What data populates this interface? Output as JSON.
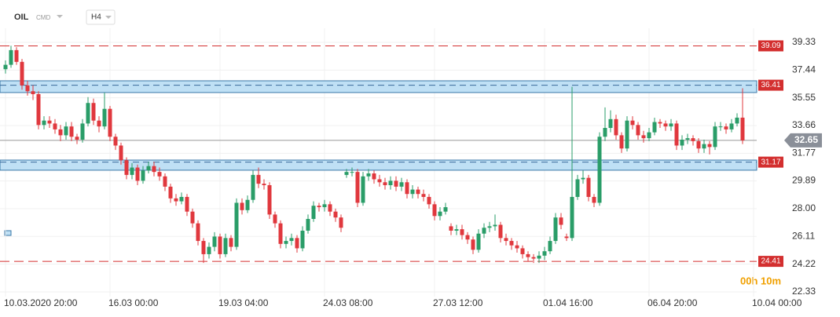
{
  "header": {
    "symbol": "OIL",
    "market": "CMD",
    "timeframe": "H4"
  },
  "chart_data": {
    "type": "candlestick",
    "countdown": "00h 10m",
    "categories": [
      "10.03.2020 20:00",
      null,
      null,
      null,
      null,
      null,
      null,
      null,
      null,
      null,
      null,
      null,
      null,
      null,
      null,
      null,
      null,
      null,
      null,
      "16.03 00:00",
      null,
      null,
      null,
      null,
      null,
      null,
      null,
      null,
      null,
      null,
      null,
      null,
      null,
      null,
      null,
      null,
      null,
      null,
      null,
      "19.03 04:00",
      null,
      null,
      null,
      null,
      null,
      null,
      null,
      null,
      null,
      null,
      null,
      null,
      null,
      null,
      null,
      null,
      null,
      null,
      "24.03 08:00",
      null,
      null,
      null,
      null,
      null,
      null,
      null,
      null,
      null,
      null,
      null,
      null,
      null,
      null,
      null,
      null,
      null,
      null,
      null,
      "27.03 12:00",
      null,
      null,
      null,
      null,
      null,
      null,
      null,
      null,
      null,
      null,
      null,
      null,
      null,
      null,
      null,
      null,
      null,
      null,
      null,
      "01.04 16:00",
      null,
      null,
      null,
      null,
      null,
      null,
      null,
      null,
      null,
      null,
      null,
      null,
      null,
      null,
      null,
      null,
      null,
      null,
      "06.04 20:00",
      null,
      null,
      null,
      null,
      null,
      null,
      null,
      null,
      null,
      null,
      null,
      null,
      null,
      null,
      null,
      null,
      null,
      null,
      "10.04 00:00"
    ],
    "open": [
      37.5,
      37.8,
      38.8,
      38.0,
      36.4,
      36.0,
      35.8,
      33.7,
      34.0,
      33.8,
      33.4,
      33.0,
      33.6,
      32.9,
      32.7,
      33.8,
      35.2,
      34.0,
      33.6,
      34.8,
      32.9,
      32.3,
      31.3,
      30.3,
      30.8,
      29.9,
      30.6,
      30.9,
      30.5,
      30.2,
      29.5,
      28.7,
      28.5,
      28.8,
      27.8,
      27.0,
      25.8,
      24.9,
      25.4,
      26.1,
      24.9,
      26.0,
      25.4,
      28.4,
      27.9,
      28.6,
      30.3,
      29.7,
      29.6,
      27.6,
      27.0,
      25.6,
      25.8,
      26.0,
      25.3,
      26.5,
      27.3,
      28.2,
      28.1,
      28.3,
      27.8,
      27.4,
      30.3,
      30.5,
      30.5,
      28.4,
      30.2,
      30.4,
      30.0,
      29.8,
      29.6,
      29.9,
      29.5,
      29.8,
      29.0,
      29.3,
      29.0,
      28.8,
      28.3,
      27.5,
      27.8,
      26.8,
      26.5,
      26.6,
      26.2,
      25.9,
      25.2,
      26.3,
      26.7,
      26.8,
      26.9,
      26.0,
      25.8,
      25.5,
      25.3,
      24.9,
      24.7,
      24.6,
      24.8,
      25.1,
      25.8,
      27.4,
      26.1,
      26.0,
      28.8,
      30.0,
      30.1,
      28.8,
      28.4,
      32.9,
      33.5,
      34.1,
      33.0,
      32.1,
      34.0,
      33.7,
      33.0,
      32.8,
      33.2,
      33.9,
      33.8,
      33.6,
      33.8,
      32.3,
      32.7,
      32.8,
      32.6,
      32.1,
      32.4,
      32.2,
      33.6,
      33.6,
      33.4,
      33.8,
      34.2,
      null,
      null
    ],
    "high": [
      38.1,
      39.1,
      39.0,
      38.2,
      36.7,
      36.4,
      36.0,
      34.3,
      34.3,
      34.1,
      33.7,
      33.9,
      33.9,
      33.1,
      34.1,
      35.6,
      35.5,
      34.3,
      35.9,
      35.0,
      33.1,
      32.5,
      31.5,
      31.1,
      31.0,
      30.9,
      31.2,
      31.2,
      30.8,
      30.4,
      29.7,
      29.0,
      29.1,
      29.0,
      28.0,
      27.2,
      26.0,
      25.7,
      26.4,
      26.3,
      26.3,
      26.2,
      28.7,
      28.7,
      28.9,
      30.6,
      30.8,
      30.0,
      29.8,
      27.8,
      27.2,
      26.1,
      26.3,
      26.2,
      26.8,
      27.6,
      28.5,
      28.4,
      28.6,
      28.5,
      28.0,
      27.6,
      30.7,
      30.8,
      30.7,
      30.5,
      30.7,
      30.6,
      30.3,
      30.1,
      30.2,
      30.2,
      30.1,
      30.0,
      29.6,
      29.5,
      29.3,
      29.0,
      28.5,
      28.1,
      28.4,
      27.0,
      26.9,
      26.9,
      26.4,
      26.1,
      26.6,
      27.0,
      27.1,
      27.6,
      27.1,
      26.3,
      26.0,
      25.8,
      25.5,
      25.1,
      24.9,
      25.1,
      25.4,
      26.1,
      27.7,
      27.7,
      26.3,
      36.3,
      30.3,
      30.6,
      30.3,
      29.0,
      33.2,
      34.9,
      34.7,
      34.4,
      33.2,
      34.3,
      34.3,
      33.9,
      33.3,
      33.5,
      34.2,
      34.1,
      34.0,
      34.1,
      34.0,
      33.0,
      33.1,
      33.0,
      32.8,
      32.7,
      32.6,
      33.9,
      33.9,
      33.8,
      34.1,
      34.5,
      36.2,
      null,
      null
    ],
    "low": [
      37.2,
      37.6,
      37.8,
      36.1,
      35.7,
      35.4,
      33.4,
      33.4,
      33.5,
      33.1,
      32.6,
      32.7,
      32.6,
      32.4,
      32.5,
      33.6,
      33.7,
      33.2,
      33.4,
      32.6,
      32.0,
      31.0,
      30.0,
      30.0,
      29.6,
      29.7,
      30.4,
      30.2,
      29.9,
      29.2,
      28.4,
      28.2,
      28.3,
      27.5,
      26.7,
      25.5,
      24.3,
      24.6,
      25.1,
      24.6,
      24.7,
      25.1,
      25.2,
      27.6,
      27.7,
      28.4,
      29.4,
      29.3,
      27.3,
      26.7,
      25.3,
      25.3,
      25.5,
      25.0,
      25.1,
      26.3,
      27.1,
      27.8,
      27.8,
      27.5,
      27.1,
      26.4,
      30.1,
      30.2,
      28.1,
      28.2,
      29.9,
      29.7,
      29.5,
      29.3,
      29.3,
      29.2,
      29.2,
      28.7,
      28.7,
      28.7,
      28.5,
      28.0,
      27.2,
      27.2,
      27.6,
      26.2,
      26.2,
      25.9,
      25.6,
      24.9,
      25.0,
      26.0,
      26.4,
      26.5,
      25.7,
      25.5,
      25.2,
      25.0,
      24.6,
      24.4,
      24.3,
      24.3,
      24.5,
      24.9,
      25.6,
      26.6,
      25.8,
      25.8,
      28.6,
      29.7,
      28.5,
      28.1,
      28.2,
      32.6,
      33.2,
      32.7,
      31.8,
      31.9,
      33.4,
      32.7,
      32.5,
      32.6,
      33.0,
      33.5,
      33.3,
      33.3,
      32.0,
      32.0,
      32.4,
      32.3,
      31.8,
      31.8,
      31.7,
      32.0,
      33.3,
      33.1,
      33.2,
      33.6,
      32.4,
      null,
      null
    ],
    "close": [
      37.8,
      38.8,
      38.0,
      36.4,
      36.0,
      35.8,
      33.7,
      34.0,
      33.8,
      33.4,
      33.0,
      33.6,
      32.9,
      32.7,
      33.8,
      35.2,
      34.0,
      33.6,
      34.8,
      32.9,
      32.3,
      31.3,
      30.3,
      30.8,
      29.9,
      30.6,
      30.9,
      30.5,
      30.2,
      29.5,
      28.7,
      28.5,
      28.8,
      27.8,
      27.0,
      25.8,
      24.9,
      25.4,
      26.1,
      24.9,
      26.0,
      25.4,
      28.4,
      27.9,
      28.6,
      30.3,
      29.7,
      29.6,
      27.6,
      27.0,
      25.6,
      25.8,
      26.0,
      25.3,
      26.5,
      27.3,
      28.2,
      28.1,
      28.3,
      27.8,
      27.4,
      26.7,
      30.5,
      30.5,
      28.4,
      30.2,
      30.4,
      30.0,
      29.8,
      29.6,
      29.9,
      29.5,
      29.8,
      29.0,
      29.3,
      29.0,
      28.8,
      28.3,
      27.5,
      27.8,
      28.1,
      26.5,
      26.6,
      26.2,
      25.9,
      25.2,
      26.3,
      26.7,
      26.8,
      26.9,
      26.0,
      25.8,
      25.5,
      25.3,
      24.9,
      24.7,
      24.6,
      24.8,
      25.1,
      25.8,
      27.4,
      26.9,
      26.0,
      28.8,
      30.0,
      30.1,
      28.8,
      28.4,
      32.9,
      33.5,
      34.1,
      33.0,
      32.1,
      34.0,
      33.7,
      33.0,
      32.8,
      33.2,
      33.9,
      33.8,
      33.6,
      33.8,
      32.3,
      32.7,
      32.8,
      32.6,
      32.1,
      32.4,
      32.2,
      33.6,
      33.6,
      33.4,
      33.8,
      34.2,
      32.65,
      null,
      null
    ],
    "up_color": "#2a9d68",
    "down_color": "#e0383e",
    "levels": [
      39.09,
      24.41
    ],
    "level_color": "#d32f2f",
    "zones": [
      {
        "value": 36.41,
        "top": 36.71,
        "bottom": 35.91
      },
      {
        "value": 31.17,
        "top": 31.31,
        "bottom": 30.62
      }
    ],
    "zone_color": "#bfe0f5",
    "current_price": 32.65,
    "ylim": [
      22.01,
      40.29
    ],
    "yticks": [
      39.33,
      37.44,
      35.55,
      33.66,
      31.77,
      29.89,
      {
        "value": 28,
        "label": "28.00"
      },
      26.11,
      24.22,
      22.33
    ],
    "grid": true
  }
}
